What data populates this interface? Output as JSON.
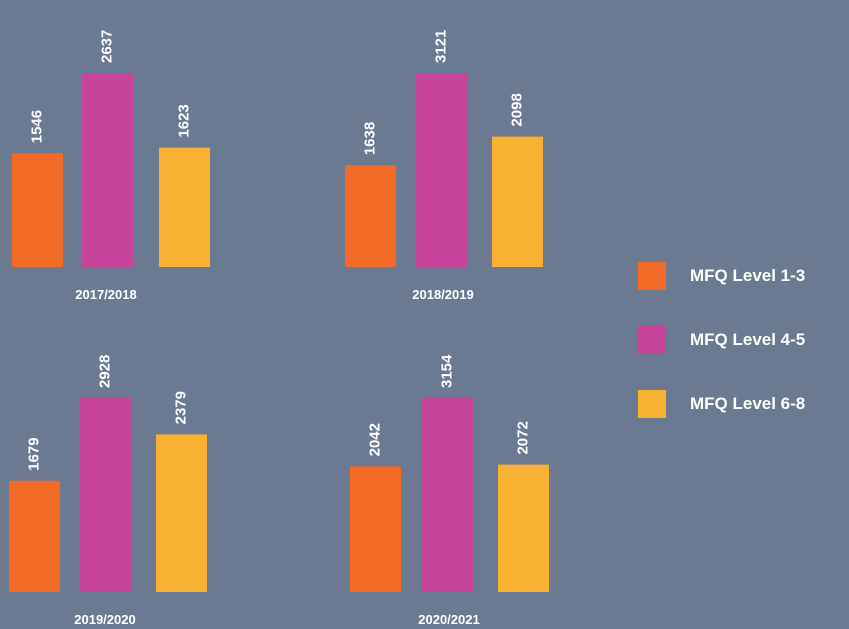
{
  "colors": {
    "background": "#6b7a90",
    "level_1_3": "#f26b26",
    "level_4_5": "#c7449b",
    "level_6_8": "#f8b133",
    "text": "#ffffff"
  },
  "legend": [
    {
      "label": "MFQ Level 1-3",
      "color": "#f26b26"
    },
    {
      "label": "MFQ Level 4-5",
      "color": "#c7449b"
    },
    {
      "label": "MFQ Level 6-8",
      "color": "#f8b133"
    }
  ],
  "chart_data": [
    {
      "type": "bar",
      "categories": [
        "MFQ Level 1-3",
        "MFQ Level 4-5",
        "MFQ Level 6-8"
      ],
      "values": [
        1546,
        2637,
        1623
      ],
      "xlabel": "2017/2018",
      "data_labels": true,
      "legend_position": "right"
    },
    {
      "type": "bar",
      "categories": [
        "MFQ Level 1-3",
        "MFQ Level 4-5",
        "MFQ Level 6-8"
      ],
      "values": [
        1638,
        3121,
        2098
      ],
      "xlabel": "2018/2019",
      "data_labels": true,
      "legend_position": "right"
    },
    {
      "type": "bar",
      "categories": [
        "MFQ Level 1-3",
        "MFQ Level 4-5",
        "MFQ Level 6-8"
      ],
      "values": [
        1679,
        2928,
        2379
      ],
      "xlabel": "2019/2020",
      "data_labels": true,
      "legend_position": "right"
    },
    {
      "type": "bar",
      "categories": [
        "MFQ Level 1-3",
        "MFQ Level 4-5",
        "MFQ Level 6-8"
      ],
      "values": [
        2042,
        3154,
        2072
      ],
      "xlabel": "2020/2021",
      "data_labels": true,
      "legend_position": "right"
    }
  ]
}
